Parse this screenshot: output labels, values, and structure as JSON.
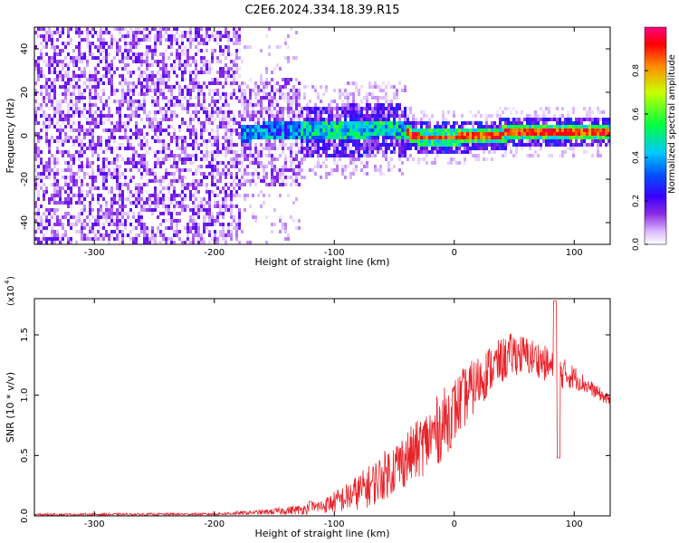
{
  "title": "C2E6.2024.334.18.39.R15",
  "chart_data": [
    {
      "type": "heatmap",
      "xlabel": "Height of straight line (km)",
      "ylabel": "Frequency (Hz)",
      "xlim": [
        -350,
        130
      ],
      "ylim": [
        -50,
        50
      ],
      "x_ticks": [
        -300,
        -200,
        -100,
        0,
        100
      ],
      "x_tick_labels": [
        "-300",
        "-200",
        "-100",
        "0",
        "100"
      ],
      "y_ticks": [
        -40,
        -20,
        0,
        20,
        40
      ],
      "y_tick_labels": [
        "-40",
        "-20",
        "0",
        "20",
        "40"
      ],
      "colorbar": {
        "label": "Normalized spectral amplitude",
        "range": [
          0.0,
          1.0
        ],
        "ticks": [
          0.0,
          0.2,
          0.4,
          0.6,
          0.8
        ],
        "tick_labels": [
          "0.0",
          "0.2",
          "0.4",
          "0.6",
          "0.8"
        ]
      },
      "regions": [
        {
          "x": [
            -350,
            -180
          ],
          "freq_spread": [
            -50,
            50
          ],
          "amplitude": [
            0.02,
            0.2
          ],
          "description_level": "broadband noise"
        },
        {
          "x": [
            -180,
            -130
          ],
          "freq_spread": [
            -25,
            25
          ],
          "amplitude": [
            0.05,
            0.45
          ]
        },
        {
          "x": [
            -130,
            -40
          ],
          "freq_spread": [
            -10,
            12
          ],
          "amplitude": [
            0.2,
            0.55
          ]
        },
        {
          "x": [
            -40,
            130
          ],
          "freq_spread": [
            -3,
            6
          ],
          "amplitude": [
            0.5,
            1.0
          ]
        }
      ],
      "ridge_freq": [
        {
          "x": -180,
          "f": 2
        },
        {
          "x": -150,
          "f": 3
        },
        {
          "x": -120,
          "f": 3
        },
        {
          "x": -90,
          "f": 3
        },
        {
          "x": -70,
          "f": 4
        },
        {
          "x": -50,
          "f": 4
        },
        {
          "x": -30,
          "f": 0
        },
        {
          "x": 0,
          "f": 0
        },
        {
          "x": 30,
          "f": 1
        },
        {
          "x": 60,
          "f": 3
        },
        {
          "x": 90,
          "f": 2
        },
        {
          "x": 130,
          "f": 2
        }
      ],
      "colors": [
        "#ffffff",
        "#d9b8ff",
        "#8a2be2",
        "#3c00ff",
        "#0050ff",
        "#00c8ff",
        "#00ff40",
        "#c8ff00",
        "#ff8c00",
        "#ff0000"
      ]
    },
    {
      "type": "line",
      "xlabel": "Height of straight line (km)",
      "ylabel": "SNR (10 * v/v)",
      "y_multiplier_label": "(x10",
      "y_multiplier_exp": "4",
      "xlim": [
        -350,
        130
      ],
      "ylim": [
        0,
        1.8
      ],
      "x_ticks": [
        -300,
        -200,
        -100,
        0,
        100
      ],
      "x_tick_labels": [
        "-300",
        "-200",
        "-100",
        "0",
        "100"
      ],
      "y_ticks": [
        0.0,
        0.5,
        1.0,
        1.5
      ],
      "y_tick_labels": [
        "0.0",
        "0.5",
        "1.0",
        "1.5"
      ],
      "series": [
        {
          "color": "#e8232a",
          "envelope": [
            {
              "x": -350,
              "mean": 0.01,
              "spread": 0.01
            },
            {
              "x": -200,
              "mean": 0.015,
              "spread": 0.01
            },
            {
              "x": -160,
              "mean": 0.03,
              "spread": 0.02
            },
            {
              "x": -130,
              "mean": 0.05,
              "spread": 0.04
            },
            {
              "x": -110,
              "mean": 0.08,
              "spread": 0.06
            },
            {
              "x": -90,
              "mean": 0.15,
              "spread": 0.12
            },
            {
              "x": -70,
              "mean": 0.25,
              "spread": 0.18
            },
            {
              "x": -50,
              "mean": 0.4,
              "spread": 0.22
            },
            {
              "x": -30,
              "mean": 0.55,
              "spread": 0.25
            },
            {
              "x": -10,
              "mean": 0.75,
              "spread": 0.3
            },
            {
              "x": 10,
              "mean": 1.0,
              "spread": 0.25
            },
            {
              "x": 30,
              "mean": 1.22,
              "spread": 0.2
            },
            {
              "x": 50,
              "mean": 1.35,
              "spread": 0.18
            },
            {
              "x": 70,
              "mean": 1.3,
              "spread": 0.15
            },
            {
              "x": 85,
              "mean": 1.2,
              "spread": 0.15
            },
            {
              "x": 100,
              "mean": 1.15,
              "spread": 0.1
            },
            {
              "x": 115,
              "mean": 1.05,
              "spread": 0.06
            },
            {
              "x": 130,
              "mean": 0.95,
              "spread": 0.05
            }
          ],
          "features": [
            {
              "x": 87,
              "value": 0.48,
              "kind": "dip"
            },
            {
              "x": 84,
              "value": 1.78,
              "kind": "peak"
            },
            {
              "x": -120,
              "value": 0.12,
              "kind": "spike"
            }
          ]
        }
      ]
    }
  ]
}
